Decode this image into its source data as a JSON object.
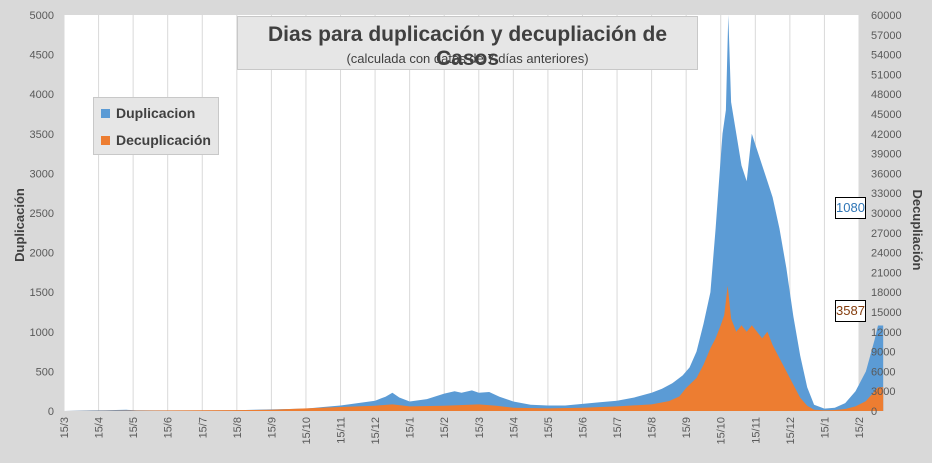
{
  "chart_data": {
    "type": "area",
    "title": "Dias para duplicación y decupliación de Casos",
    "subtitle": "(calculada con datos de 7 días anteriores)",
    "ylabel": "Duplicación",
    "y2label": "Decupliación",
    "ylim": [
      0,
      5000
    ],
    "y2lim": [
      0,
      60000
    ],
    "yticks": [
      "0",
      "500",
      "1000",
      "1500",
      "2000",
      "2500",
      "3000",
      "3500",
      "4000",
      "4500",
      "5000"
    ],
    "y2ticks": [
      "0",
      "3000",
      "6000",
      "9000",
      "12000",
      "15000",
      "18000",
      "21000",
      "24000",
      "27000",
      "30000",
      "33000",
      "36000",
      "39000",
      "42000",
      "45000",
      "48000",
      "51000",
      "54000",
      "57000",
      "60000"
    ],
    "xticks": [
      "15/3",
      "15/4",
      "15/5",
      "15/6",
      "15/7",
      "15/8",
      "15/9",
      "15/10",
      "15/11",
      "15/12",
      "15/1",
      "15/2",
      "15/3",
      "15/4",
      "15/5",
      "15/6",
      "15/7",
      "15/8",
      "15/9",
      "15/10",
      "15/11",
      "15/12",
      "15/1",
      "15/2"
    ],
    "legend": "top-left",
    "grid": "vertical",
    "series": [
      {
        "name": "Duplicacion",
        "axis": "left",
        "color": "#5b9bd5",
        "points": [
          [
            0,
            0
          ],
          [
            0.8,
            8
          ],
          [
            1.2,
            10
          ],
          [
            1.5,
            12
          ],
          [
            1.8,
            15
          ],
          [
            2.1,
            10
          ],
          [
            3,
            8
          ],
          [
            4,
            8
          ],
          [
            5,
            10
          ],
          [
            5.5,
            15
          ],
          [
            6,
            20
          ],
          [
            6.5,
            25
          ],
          [
            7,
            30
          ],
          [
            7.5,
            50
          ],
          [
            8,
            70
          ],
          [
            8.5,
            100
          ],
          [
            9,
            130
          ],
          [
            9.3,
            180
          ],
          [
            9.5,
            230
          ],
          [
            9.7,
            170
          ],
          [
            10,
            120
          ],
          [
            10.5,
            150
          ],
          [
            11,
            220
          ],
          [
            11.3,
            250
          ],
          [
            11.5,
            230
          ],
          [
            11.8,
            260
          ],
          [
            12,
            230
          ],
          [
            12.3,
            240
          ],
          [
            12.6,
            180
          ],
          [
            13,
            120
          ],
          [
            13.5,
            80
          ],
          [
            14,
            70
          ],
          [
            14.5,
            70
          ],
          [
            15,
            90
          ],
          [
            15.5,
            110
          ],
          [
            16,
            130
          ],
          [
            16.5,
            170
          ],
          [
            17,
            230
          ],
          [
            17.3,
            280
          ],
          [
            17.6,
            350
          ],
          [
            17.9,
            450
          ],
          [
            18.1,
            550
          ],
          [
            18.3,
            750
          ],
          [
            18.5,
            1100
          ],
          [
            18.7,
            1500
          ],
          [
            18.85,
            2300
          ],
          [
            18.95,
            2900
          ],
          [
            19.05,
            3500
          ],
          [
            19.15,
            3800
          ],
          [
            19.22,
            5000
          ],
          [
            19.3,
            3900
          ],
          [
            19.45,
            3500
          ],
          [
            19.6,
            3100
          ],
          [
            19.75,
            2900
          ],
          [
            19.9,
            3500
          ],
          [
            20.05,
            3300
          ],
          [
            20.2,
            3100
          ],
          [
            20.35,
            2900
          ],
          [
            20.5,
            2700
          ],
          [
            20.7,
            2300
          ],
          [
            20.9,
            1800
          ],
          [
            21.1,
            1200
          ],
          [
            21.3,
            700
          ],
          [
            21.5,
            300
          ],
          [
            21.7,
            80
          ],
          [
            22,
            30
          ],
          [
            22.3,
            40
          ],
          [
            22.6,
            100
          ],
          [
            22.9,
            250
          ],
          [
            23.2,
            500
          ],
          [
            23.45,
            900
          ],
          [
            23.55,
            1080
          ],
          [
            23.7,
            1080
          ]
        ]
      },
      {
        "name": "Decuplicación",
        "axis": "right",
        "color": "#ed7d31",
        "points": [
          [
            0,
            0
          ],
          [
            5.5,
            150
          ],
          [
            6,
            200
          ],
          [
            7,
            400
          ],
          [
            8,
            600
          ],
          [
            9,
            800
          ],
          [
            9.5,
            1000
          ],
          [
            10,
            700
          ],
          [
            11,
            800
          ],
          [
            12,
            1000
          ],
          [
            12.5,
            800
          ],
          [
            13,
            500
          ],
          [
            14,
            400
          ],
          [
            15,
            500
          ],
          [
            16,
            700
          ],
          [
            17,
            1000
          ],
          [
            17.5,
            1500
          ],
          [
            17.8,
            2200
          ],
          [
            18,
            3500
          ],
          [
            18.3,
            5000
          ],
          [
            18.5,
            7000
          ],
          [
            18.7,
            9500
          ],
          [
            18.85,
            11000
          ],
          [
            19,
            13000
          ],
          [
            19.1,
            14500
          ],
          [
            19.2,
            19000
          ],
          [
            19.3,
            14000
          ],
          [
            19.45,
            12000
          ],
          [
            19.6,
            13000
          ],
          [
            19.75,
            12000
          ],
          [
            19.9,
            13000
          ],
          [
            20.05,
            12000
          ],
          [
            20.2,
            11000
          ],
          [
            20.35,
            12000
          ],
          [
            20.5,
            10000
          ],
          [
            20.7,
            8000
          ],
          [
            20.9,
            6000
          ],
          [
            21.1,
            4000
          ],
          [
            21.3,
            2000
          ],
          [
            21.5,
            800
          ],
          [
            21.7,
            200
          ],
          [
            22,
            100
          ],
          [
            22.3,
            150
          ],
          [
            22.6,
            300
          ],
          [
            22.9,
            700
          ],
          [
            23.2,
            1500
          ],
          [
            23.45,
            3000
          ],
          [
            23.55,
            3587
          ],
          [
            23.7,
            3587
          ]
        ]
      }
    ],
    "data_labels": [
      {
        "text": "1080",
        "series": "Duplicacion",
        "color": "#2e75b6"
      },
      {
        "text": "3587",
        "series": "Decuplicación",
        "color": "#843c0c"
      }
    ]
  }
}
